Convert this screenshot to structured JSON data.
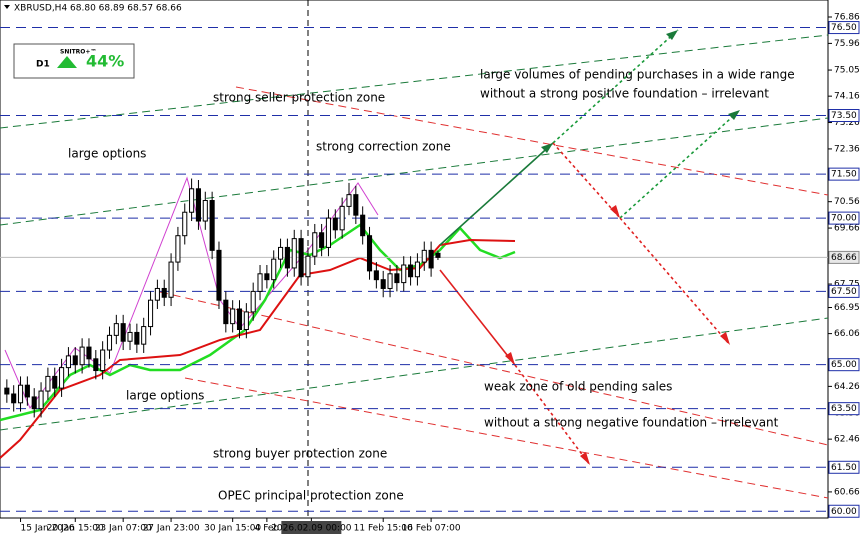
{
  "header": {
    "title": "XBRUSD,H4  68.80 68.89 68.57 68.66",
    "logo": "SNITRO+™",
    "period": "D1",
    "percent": "44%"
  },
  "chart_data": {
    "type": "candlestick",
    "open": [
      64.2,
      64.0,
      63.7,
      64.3,
      63.9,
      63.5,
      64.1,
      64.6,
      64.2,
      64.9,
      65.3,
      65.0,
      65.6,
      65.2,
      64.8,
      65.5,
      66.0,
      66.4,
      65.8,
      66.1,
      65.7,
      66.3,
      67.2,
      67.6,
      67.3,
      68.5,
      69.4,
      70.2,
      71.0,
      69.9,
      70.6,
      68.9,
      67.2,
      66.4,
      66.9,
      66.2,
      66.8,
      67.5,
      68.1,
      67.9,
      68.6,
      69.0,
      68.3,
      69.3,
      68.0,
      68.7,
      69.5,
      69.0,
      70.0,
      69.6,
      70.4,
      70.8,
      70.1,
      69.4,
      68.2,
      67.9,
      67.6,
      68.1,
      67.8,
      68.4,
      68.0,
      68.5,
      68.9,
      68.8
    ],
    "high": [
      64.5,
      64.3,
      64.6,
      64.6,
      64.2,
      64.4,
      64.9,
      64.9,
      65.2,
      65.6,
      65.6,
      65.9,
      65.9,
      65.5,
      65.8,
      66.3,
      66.7,
      66.7,
      66.4,
      66.4,
      66.6,
      67.5,
      67.9,
      67.9,
      68.8,
      69.7,
      70.5,
      71.35,
      71.3,
      70.9,
      70.9,
      69.2,
      67.5,
      67.2,
      67.2,
      67.1,
      67.8,
      68.4,
      68.4,
      68.9,
      69.3,
      69.3,
      69.6,
      69.6,
      69.0,
      69.8,
      69.8,
      70.3,
      70.3,
      70.7,
      71.2,
      71.1,
      70.4,
      69.7,
      68.5,
      68.2,
      68.4,
      68.4,
      68.7,
      68.7,
      68.8,
      69.2,
      69.2,
      68.89
    ],
    "low": [
      63.7,
      63.4,
      63.4,
      63.6,
      63.2,
      63.2,
      63.8,
      63.9,
      63.9,
      64.6,
      64.7,
      64.7,
      64.9,
      64.5,
      64.5,
      65.2,
      65.7,
      65.5,
      65.5,
      65.4,
      65.4,
      66.0,
      66.9,
      67.0,
      67.0,
      68.2,
      69.1,
      69.9,
      69.6,
      69.6,
      68.6,
      66.9,
      66.1,
      66.1,
      65.9,
      65.9,
      66.5,
      67.2,
      67.6,
      67.6,
      68.3,
      68.0,
      68.0,
      67.7,
      67.7,
      68.4,
      68.7,
      68.7,
      69.3,
      69.3,
      70.1,
      69.8,
      69.1,
      67.9,
      67.6,
      67.3,
      67.3,
      67.5,
      67.5,
      67.7,
      67.7,
      68.2,
      68.0,
      68.57
    ],
    "close": [
      64.0,
      63.7,
      64.3,
      63.9,
      63.5,
      64.1,
      64.6,
      64.2,
      64.9,
      65.3,
      65.0,
      65.6,
      65.2,
      64.8,
      65.5,
      66.0,
      66.4,
      65.8,
      66.1,
      65.7,
      66.3,
      67.2,
      67.6,
      67.3,
      68.5,
      69.4,
      70.2,
      71.0,
      69.9,
      70.6,
      68.9,
      67.2,
      66.4,
      66.9,
      66.2,
      66.8,
      67.5,
      68.1,
      67.9,
      68.6,
      69.0,
      68.3,
      69.3,
      68.0,
      68.7,
      69.5,
      69.0,
      70.0,
      69.6,
      70.4,
      70.8,
      70.1,
      69.4,
      68.2,
      67.9,
      67.6,
      68.1,
      67.8,
      68.4,
      68.0,
      68.5,
      68.9,
      68.3,
      68.66
    ],
    "xlim": [
      -1,
      120
    ],
    "xticks": [
      {
        "value": 2,
        "label": "15 Jan 2026"
      },
      {
        "value": 10,
        "label": "20 Jan 15:00"
      },
      {
        "value": 17,
        "label": "23 Jan 07:00"
      },
      {
        "value": 24,
        "label": "27 Jan 23:00"
      },
      {
        "value": 33,
        "label": "30 Jan 15:00"
      },
      {
        "value": 38,
        "label": "4 Feb"
      },
      {
        "value": 44.5,
        "label": "2026.02.09 00:00"
      },
      {
        "value": 55,
        "label": "11 Feb 15:00"
      },
      {
        "value": 62,
        "label": "16 Feb 07:00"
      }
    ],
    "ylim": [
      59.77,
      77.44
    ],
    "yticks": [
      76.86,
      75.96,
      75.05,
      74.16,
      73.26,
      72.36,
      70.56,
      69.66,
      67.75,
      66.95,
      66.06,
      64.26,
      63.36,
      62.46,
      60.66
    ],
    "levels": [
      {
        "value": 76.5,
        "label": "76.50"
      },
      {
        "value": 73.5,
        "label": "73.50"
      },
      {
        "value": 71.5,
        "label": "71.50"
      },
      {
        "value": 70,
        "label": "70.00"
      },
      {
        "value": 67.5,
        "label": "67.50"
      },
      {
        "value": 65,
        "label": "65.00"
      },
      {
        "value": 63.5,
        "label": "63.50"
      },
      {
        "value": 61.5,
        "label": "61.50"
      },
      {
        "value": 60,
        "label": "60.00"
      }
    ],
    "level_color": "#1f2fa8",
    "current_price": {
      "value": 68.66,
      "label": "68.66"
    },
    "annotations": [
      "large volumes of pending purchases in a wide range",
      "without a strong positive foundation – irrelevant",
      "strong seller protection zone",
      "large options",
      "strong correction zone",
      "weak zone of old pending sales",
      "large options",
      "without a strong negative foundation – irrelevant",
      "strong buyer protection zone",
      "OPEC principal protection zone"
    ]
  }
}
